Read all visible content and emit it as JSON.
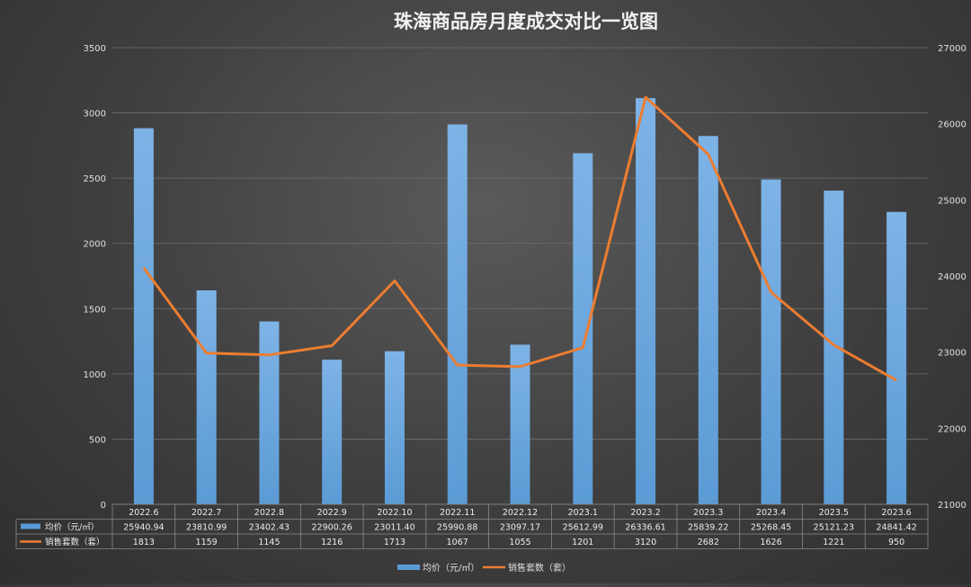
{
  "chart_data": {
    "type": "bar",
    "title": "珠海商品房月度成交对比一览图",
    "categories": [
      "2022.6",
      "2022.7",
      "2022.8",
      "2022.9",
      "2022.10",
      "2022.11",
      "2022.12",
      "2023.1",
      "2023.2",
      "2023.3",
      "2023.4",
      "2023.5",
      "2023.6"
    ],
    "series": [
      {
        "name": "均价（元/㎡）",
        "type": "bar",
        "axis": "right",
        "color": "#5b9bd5",
        "values": [
          25940.94,
          23810.99,
          23402.43,
          22900.26,
          23011.4,
          25990.88,
          23097.17,
          25612.99,
          26336.61,
          25839.22,
          25268.45,
          25121.23,
          24841.42
        ],
        "labels": [
          "25940.94",
          "23810.99",
          "23402.43",
          "22900.26",
          "23011.40",
          "25990.88",
          "23097.17",
          "25612.99",
          "26336.61",
          "25839.22",
          "25268.45",
          "25121.23",
          "24841.42"
        ]
      },
      {
        "name": "销售套数（套）",
        "type": "line",
        "axis": "left",
        "color": "#ed7d31",
        "values": [
          1813,
          1159,
          1145,
          1216,
          1713,
          1067,
          1055,
          1201,
          3120,
          2682,
          1626,
          1221,
          950
        ],
        "labels": [
          "1813",
          "1159",
          "1145",
          "1216",
          "1713",
          "1067",
          "1055",
          "1201",
          "3120",
          "2682",
          "1626",
          "1221",
          "950"
        ]
      }
    ],
    "y_left": {
      "min": 0,
      "max": 3500,
      "step": 500,
      "ticks": [
        "0",
        "500",
        "1000",
        "1500",
        "2000",
        "2500",
        "3000",
        "3500"
      ]
    },
    "y_right": {
      "min": 21000,
      "max": 27000,
      "step": 1000,
      "ticks": [
        "21000",
        "22000",
        "23000",
        "24000",
        "25000",
        "26000",
        "27000"
      ]
    },
    "grid": true,
    "legend_position": "bottom",
    "data_table": true
  }
}
